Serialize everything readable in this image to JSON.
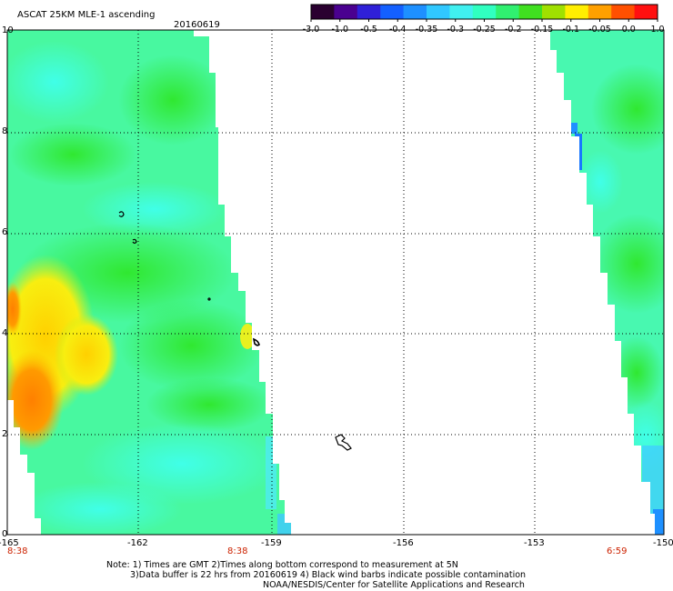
{
  "header": {
    "title": "ASCAT 25KM MLE-1 ascending",
    "date": "20160619"
  },
  "colorbar": {
    "colors": [
      "#2a0030",
      "#4a0090",
      "#2f20d8",
      "#1460ff",
      "#1e90ff",
      "#30c8ff",
      "#40f0f0",
      "#30ffc0",
      "#30f070",
      "#40e020",
      "#a0e000",
      "#ffee00",
      "#ffa000",
      "#ff5000",
      "#ff1010"
    ],
    "tick_labels": [
      "-3.0",
      "-1.0",
      "-0.5",
      "-0.4",
      "-0.35",
      "-0.3",
      "-0.25",
      "-0.2",
      "-0.15",
      "-0.1",
      "-0.05",
      "0.0",
      "1.0"
    ]
  },
  "axes": {
    "y_labels": [
      "10",
      "8",
      "6",
      "4",
      "2",
      "0"
    ],
    "x_labels": [
      "-165",
      "-162",
      "-159",
      "-156",
      "-153",
      "-150"
    ],
    "time_labels": [
      "8:38",
      "8:38",
      "6:59"
    ]
  },
  "footer": {
    "line1": "Note: 1) Times are GMT 2)Times along bottom correspond to measurement at 5N",
    "line2": "3)Data buffer is 22 hrs from 20160619 4) Black wind barbs indicate possible contamination",
    "line3": "NOAA/NESDIS/Center for Satellite Applications and Research"
  }
}
